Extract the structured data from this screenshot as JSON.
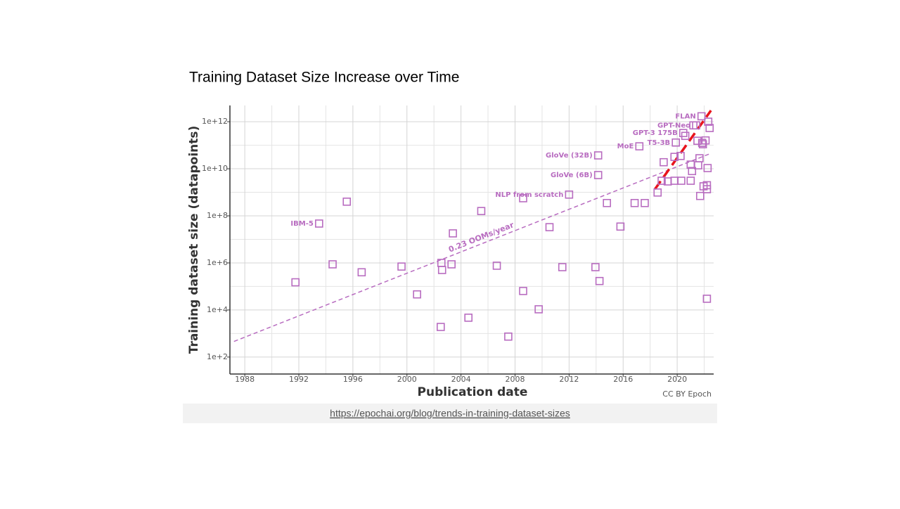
{
  "slide_title": "Training Dataset Size Increase over Time",
  "link": "https://epochai.org/blog/trends-in-training-dataset-sizes",
  "chart_data": {
    "type": "scatter",
    "y_label": "Training dataset size (datapoints)",
    "x_label": "Publication date",
    "credit": "CC BY Epoch",
    "color": "#b86cc0",
    "log_y": true,
    "grid": true,
    "xlim": [
      1986.9,
      2022.7
    ],
    "xticks": [
      1988,
      1992,
      1996,
      2000,
      2004,
      2008,
      2012,
      2016,
      2020
    ],
    "xminor": [
      1990,
      1994,
      1998,
      2002,
      2006,
      2010,
      2014,
      2018,
      2022
    ],
    "ylim": [
      19,
      4900000000000.0
    ],
    "yticks": [
      {
        "value": 100,
        "label": "1e+2"
      },
      {
        "value": 10000,
        "label": "1e+4"
      },
      {
        "value": 1000000,
        "label": "1e+6"
      },
      {
        "value": 100000000,
        "label": "1e+8"
      },
      {
        "value": 10000000000,
        "label": "1e+10"
      },
      {
        "value": 1000000000000,
        "label": "1e+12"
      }
    ],
    "yminor": [
      1000,
      100000,
      10000000,
      1000000000,
      100000000000
    ],
    "x": [
      1991.75,
      1993.5,
      1994.5,
      1995.55,
      1996.65,
      1999.6,
      2000.75,
      2002.5,
      2002.55,
      2002.6,
      2003.3,
      2003.4,
      2004.55,
      2005.5,
      2006.65,
      2007.5,
      2008.6,
      2008.6,
      2009.75,
      2010.55,
      2011.5,
      2012,
      2013.95,
      2014.15,
      2014.15,
      2014.25,
      2014.8,
      2015.8,
      2016.85,
      2017.6,
      2017.2,
      2018.55,
      2019,
      2018.85,
      2019.3,
      2019.8,
      2020.3,
      2019.8,
      2020.25,
      2019.9,
      2020.45,
      2020.6,
      2021,
      2021.1,
      2021,
      2021.55,
      2021.65,
      2021.7,
      2021.8,
      2021.4,
      2021.95,
      2022.2,
      2022.2,
      2022.25,
      2022.2,
      2022.3,
      2022.4,
      2021.5,
      2021.85,
      2022.1,
      2021.2,
      2021.9
    ],
    "values": [
      150000.0,
      47000000.0,
      870000.0,
      400000000.0,
      400000.0,
      700000.0,
      46000.0,
      1900,
      1000000.0,
      500000.0,
      870000.0,
      18000000.0,
      4700,
      160000000.0,
      760000.0,
      740,
      560000000.0,
      64000.0,
      10700.0,
      33000000.0,
      660000.0,
      800000000.0,
      660000.0,
      37000000000.0,
      5400000000.0,
      170000.0,
      350000000.0,
      35000000.0,
      350000000.0,
      350000000.0,
      90000000000.0,
      980000000.0,
      19000000000.0,
      3100000000.0,
      2900000000.0,
      3100000000.0,
      3100000000.0,
      32000000000.0,
      35000000000.0,
      130000000000.0,
      330000000000.0,
      250000000000.0,
      3100000000.0,
      8000000000.0,
      15000000000.0,
      14000000000.0,
      28000000000.0,
      700000000.0,
      1700000000000.0,
      700000000000.0,
      1800000000.0,
      2000000000.0,
      1350000000.0,
      10700000000.0,
      30000.0,
      1000000000000.0,
      540000000000.0,
      155000000000.0,
      126000000000.0,
      160000000000.0,
      700000000000.0,
      110000000000.0
    ],
    "point_labels": [
      null,
      "IBM-5",
      null,
      null,
      null,
      null,
      null,
      null,
      null,
      null,
      null,
      null,
      null,
      null,
      null,
      null,
      null,
      null,
      null,
      null,
      null,
      "NLP from scratch",
      null,
      "GloVe (32B)",
      "GloVe (6B)",
      null,
      null,
      null,
      null,
      null,
      "MoE",
      null,
      null,
      null,
      null,
      null,
      null,
      null,
      null,
      "T5-3B",
      "GPT-3 175B",
      null,
      null,
      null,
      null,
      null,
      null,
      null,
      "FLAN",
      "GPT-Neo",
      null,
      null,
      null,
      null,
      null,
      null,
      null,
      null,
      null,
      null,
      null,
      null
    ],
    "trend_lines": [
      {
        "label": "0.23 OOMs/year",
        "color": "#b86cc0",
        "x": [
          1987.2,
          2022.4
        ],
        "values": [
          460,
          43000000000.0
        ]
      },
      {
        "color": "#e8141c",
        "x": [
          2018.35,
          2022.5
        ],
        "values": [
          1350000000.0,
          3000000000000.0
        ]
      }
    ]
  }
}
